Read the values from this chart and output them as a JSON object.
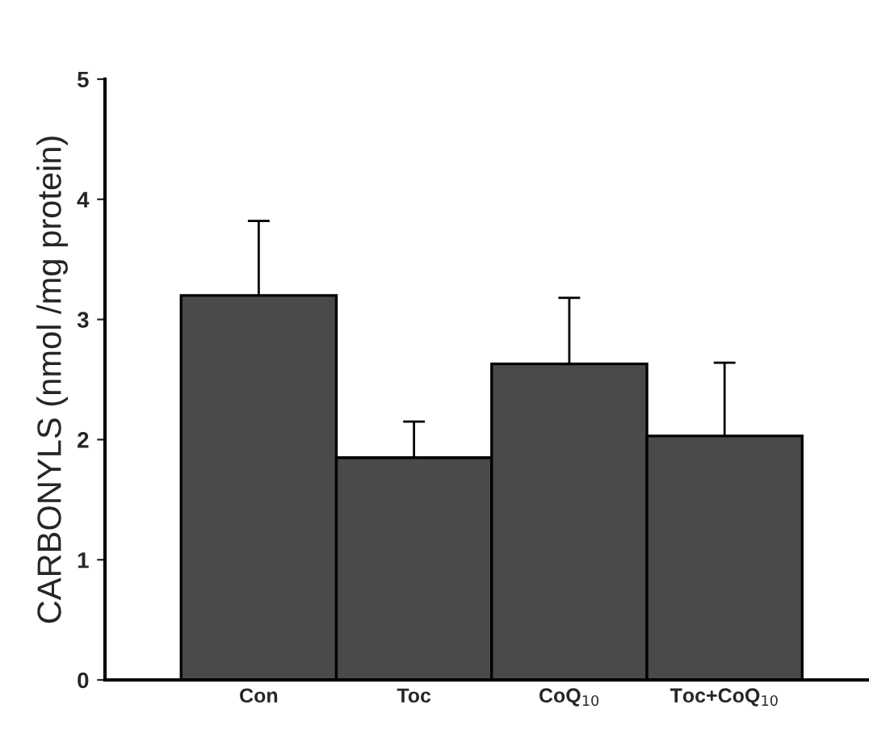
{
  "chart_data": {
    "type": "bar",
    "ylabel": "CARBONYLS (nmol /mg protein)",
    "categories": [
      "Con",
      "Toc",
      "CoQ$_{10}$",
      "Toc+CoQ$_{10}$"
    ],
    "values": [
      3.2,
      1.85,
      2.63,
      2.03
    ],
    "errors": [
      [
        3.2,
        3.82
      ],
      [
        1.85,
        2.15
      ],
      [
        2.63,
        3.18
      ],
      [
        2.03,
        2.64
      ]
    ],
    "color": "#4a4a4a",
    "ylim": [
      0,
      5
    ],
    "yticks": [
      0,
      1,
      2,
      3,
      4,
      5
    ],
    "grid": false,
    "legend": false
  }
}
